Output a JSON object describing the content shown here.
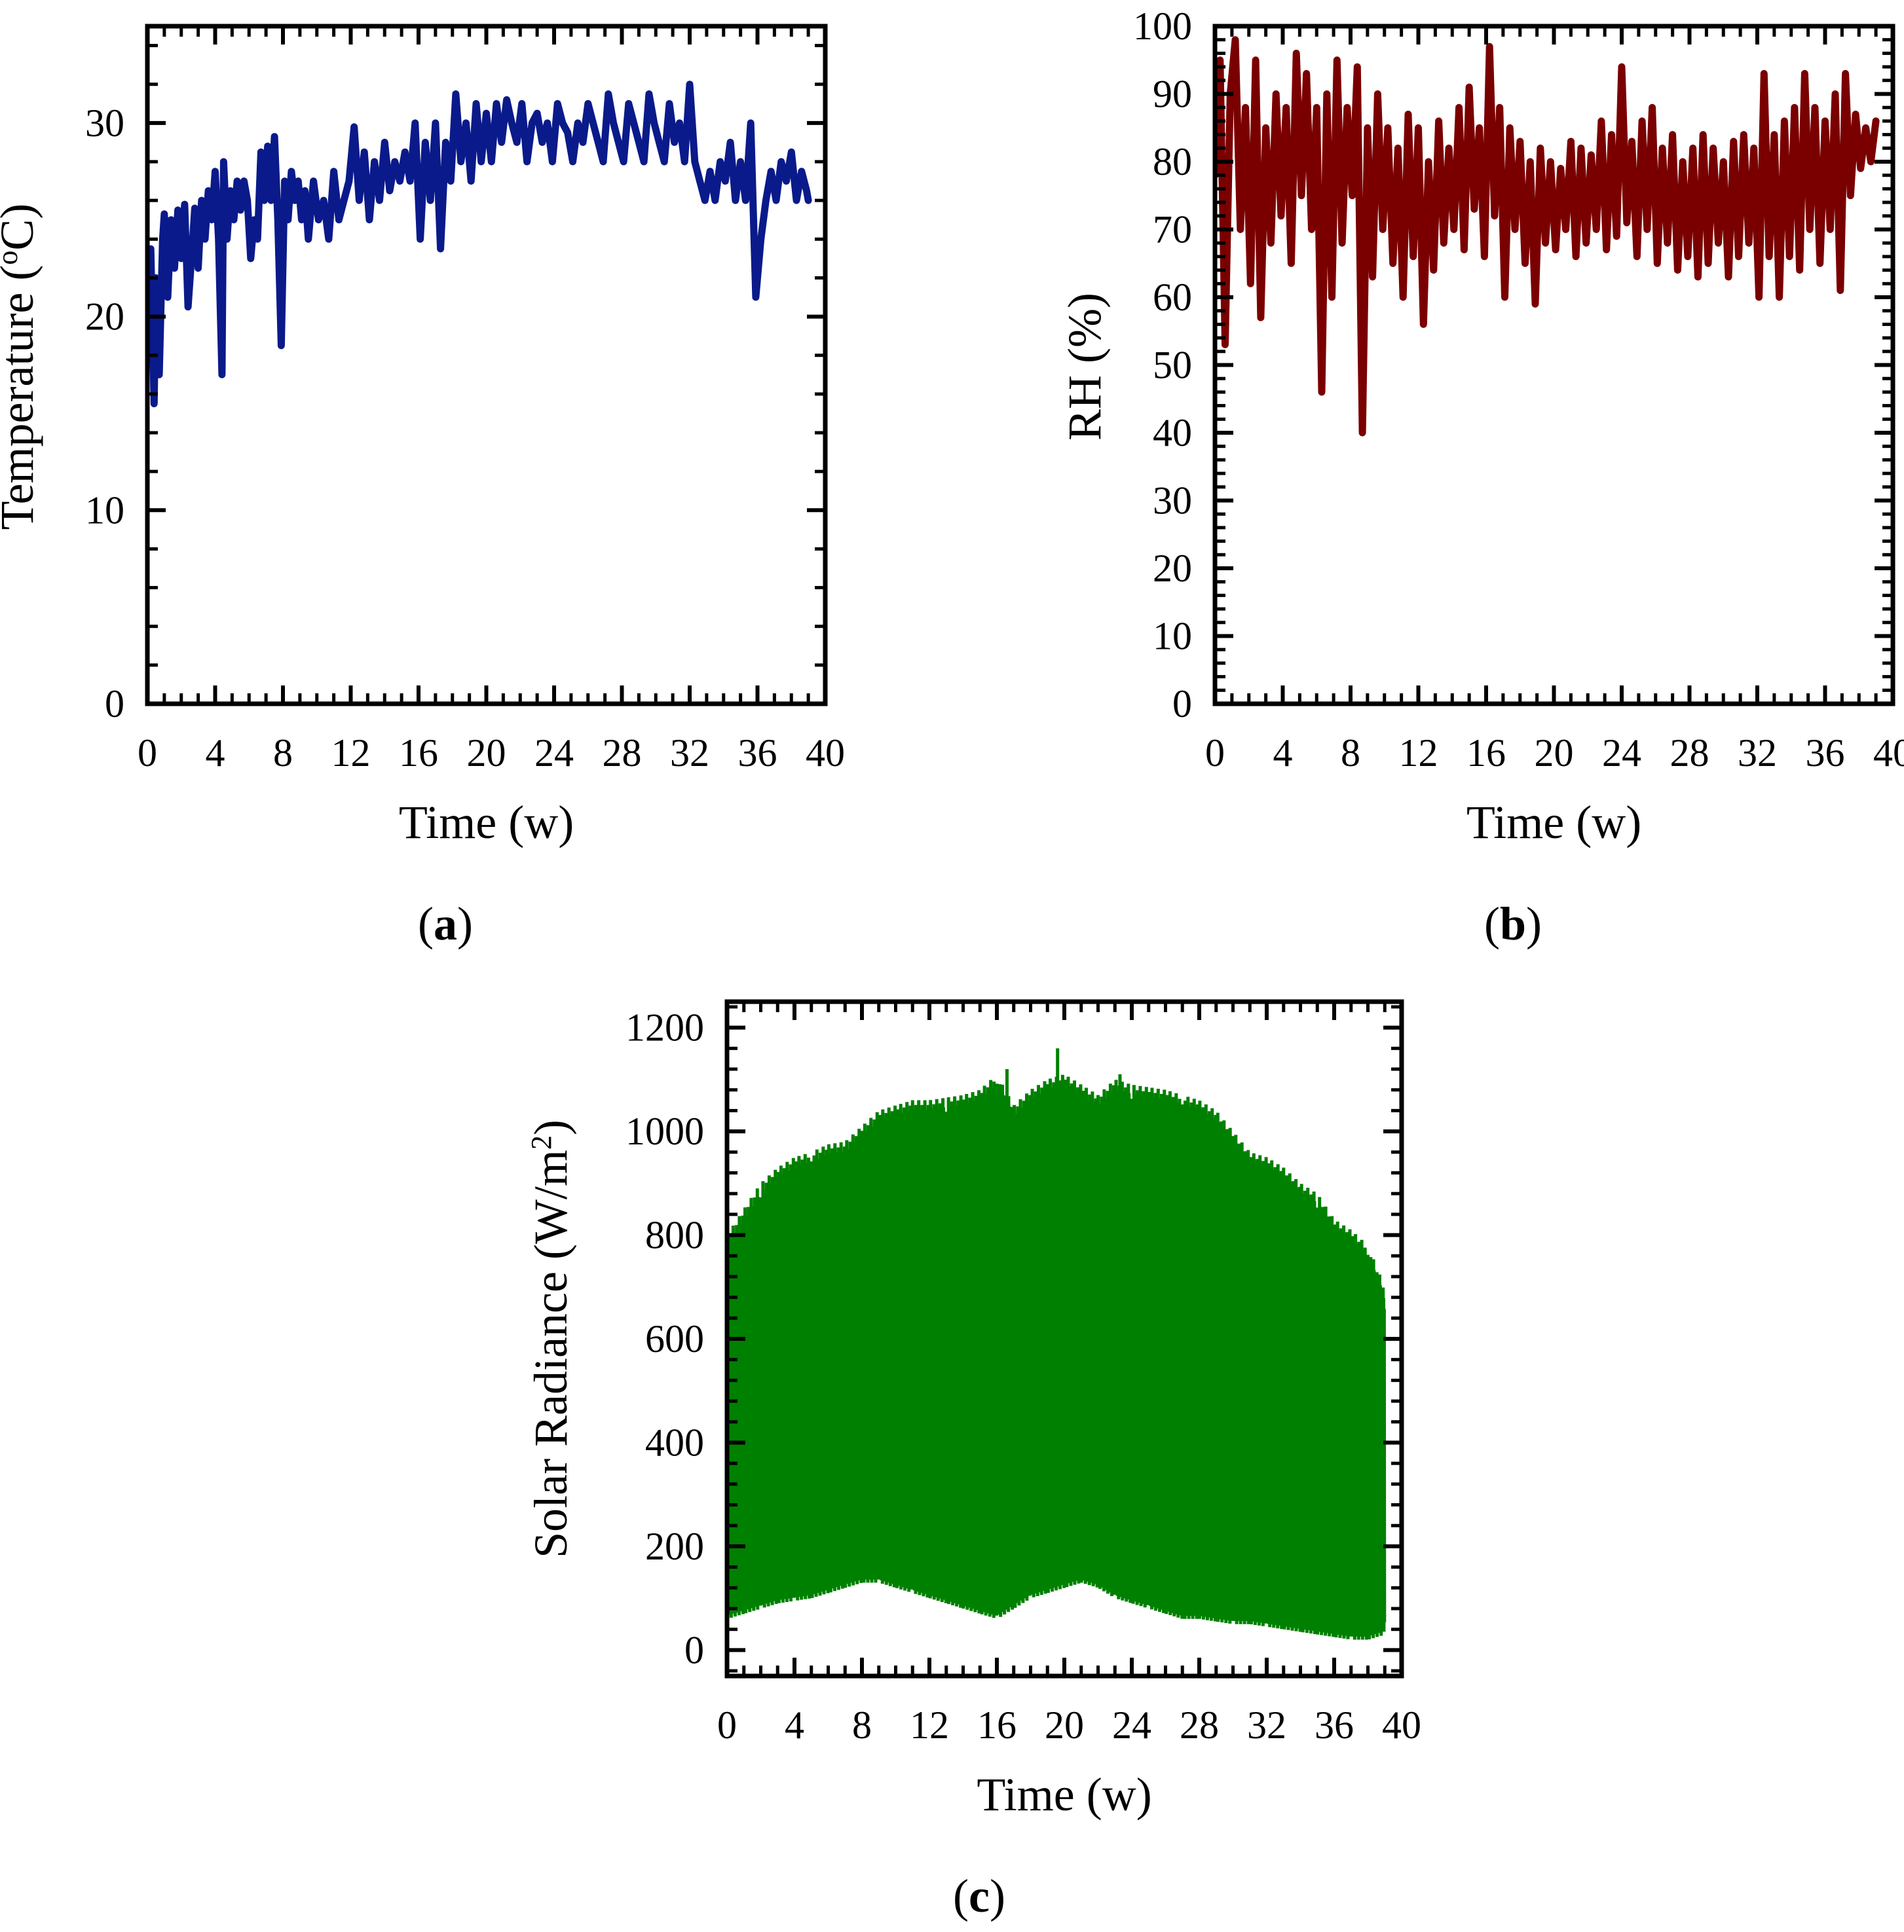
{
  "chart_data": [
    {
      "id": "a",
      "type": "line",
      "panel_label": "a",
      "xlabel": "Time (w)",
      "ylabel": "Temperature  (°C)",
      "ylabel_parts": {
        "prefix": "Temperature  (",
        "sup": "o",
        "suffix": "C)"
      },
      "xlim": [
        0,
        40
      ],
      "ylim": [
        0,
        35
      ],
      "xticks": [
        0,
        4,
        8,
        12,
        16,
        20,
        24,
        28,
        32,
        36,
        40
      ],
      "yticks": [
        0,
        10,
        20,
        30
      ],
      "color": "#0a1a8a",
      "series": [
        {
          "name": "Temperature",
          "x": [
            0.0,
            0.2,
            0.4,
            0.5,
            0.7,
            0.9,
            1.0,
            1.2,
            1.4,
            1.6,
            1.8,
            2.0,
            2.2,
            2.4,
            2.6,
            2.8,
            3.0,
            3.2,
            3.4,
            3.6,
            3.8,
            4.0,
            4.2,
            4.4,
            4.5,
            4.7,
            4.9,
            5.1,
            5.3,
            5.5,
            5.7,
            5.9,
            6.1,
            6.3,
            6.5,
            6.7,
            6.9,
            7.1,
            7.3,
            7.5,
            7.7,
            7.9,
            8.1,
            8.3,
            8.5,
            8.7,
            8.9,
            9.1,
            9.3,
            9.5,
            9.8,
            10.1,
            10.4,
            10.7,
            11.0,
            11.3,
            11.6,
            11.9,
            12.2,
            12.5,
            12.8,
            13.1,
            13.4,
            13.7,
            14.0,
            14.3,
            14.6,
            14.9,
            15.2,
            15.5,
            15.8,
            16.1,
            16.4,
            16.7,
            17.0,
            17.3,
            17.6,
            17.9,
            18.2,
            18.5,
            18.8,
            19.1,
            19.4,
            19.7,
            20.0,
            20.3,
            20.6,
            20.9,
            21.2,
            21.5,
            21.8,
            22.1,
            22.4,
            22.7,
            23.0,
            23.3,
            23.6,
            23.9,
            24.2,
            24.5,
            24.8,
            25.1,
            25.4,
            25.7,
            26.0,
            26.3,
            26.6,
            26.9,
            27.2,
            27.5,
            27.8,
            28.1,
            28.4,
            28.7,
            29.0,
            29.3,
            29.6,
            29.9,
            30.2,
            30.5,
            30.8,
            31.1,
            31.4,
            31.7,
            32.0,
            32.3,
            32.6,
            32.9,
            33.2,
            33.5,
            33.8,
            34.1,
            34.4,
            34.7,
            35.0,
            35.3,
            35.6,
            35.9,
            36.2,
            36.5,
            36.8,
            37.1,
            37.4,
            37.7,
            38.0,
            38.3,
            38.6,
            38.9,
            39.0
          ],
          "y": [
            19.5,
            23.5,
            15.5,
            22,
            17,
            24,
            25.3,
            21,
            25,
            22.5,
            25.5,
            23,
            25.8,
            20.5,
            23,
            25.6,
            22.5,
            26,
            24,
            26.5,
            25,
            27.5,
            24,
            17,
            28,
            24,
            26.5,
            25,
            27,
            25.5,
            27,
            26,
            23,
            25,
            24,
            28.5,
            26,
            28.8,
            26,
            29.3,
            25,
            18.5,
            27,
            25,
            27.5,
            26,
            27,
            25,
            26.5,
            24,
            27,
            25,
            26,
            24,
            27.5,
            25,
            26,
            27,
            29.8,
            26,
            28.5,
            25,
            28,
            26,
            29,
            26.5,
            28,
            27,
            28.5,
            27,
            30,
            24,
            29,
            26,
            30,
            23.5,
            29,
            27,
            31.5,
            28,
            30,
            27,
            31,
            28,
            30.5,
            28,
            31,
            29,
            31.2,
            30,
            29,
            31,
            28,
            30,
            30.5,
            29,
            30,
            28,
            31,
            30,
            29.5,
            28,
            30,
            29,
            31,
            30,
            29,
            28,
            31.5,
            30,
            29,
            28,
            31,
            30,
            29,
            28,
            31.5,
            30,
            29,
            28,
            31,
            29,
            30,
            28,
            32,
            28,
            27,
            26,
            27.5,
            26,
            28,
            27,
            29,
            26,
            28,
            26,
            30,
            21,
            24,
            26,
            27.5,
            26,
            28,
            27,
            28.5,
            26,
            27.5,
            26.5,
            26
          ]
        }
      ]
    },
    {
      "id": "b",
      "type": "line",
      "panel_label": "b",
      "xlabel": "Time (w)",
      "ylabel": "RH  (%)",
      "xlim": [
        0,
        40
      ],
      "ylim": [
        0,
        100
      ],
      "xticks": [
        0,
        4,
        8,
        12,
        16,
        20,
        24,
        28,
        32,
        36,
        40
      ],
      "yticks": [
        0,
        10,
        20,
        30,
        40,
        50,
        60,
        70,
        80,
        90,
        100
      ],
      "color": "#7a0000",
      "series": [
        {
          "name": "RH",
          "x": [
            0.0,
            0.3,
            0.6,
            0.9,
            1.2,
            1.5,
            1.8,
            2.1,
            2.4,
            2.7,
            3.0,
            3.3,
            3.6,
            3.9,
            4.2,
            4.5,
            4.8,
            5.1,
            5.4,
            5.7,
            6.0,
            6.3,
            6.6,
            6.9,
            7.2,
            7.5,
            7.8,
            8.1,
            8.4,
            8.7,
            9.0,
            9.3,
            9.6,
            9.9,
            10.2,
            10.5,
            10.8,
            11.1,
            11.4,
            11.7,
            12.0,
            12.3,
            12.6,
            12.9,
            13.2,
            13.5,
            13.8,
            14.1,
            14.4,
            14.7,
            15.0,
            15.3,
            15.6,
            15.9,
            16.2,
            16.5,
            16.8,
            17.1,
            17.4,
            17.7,
            18.0,
            18.3,
            18.6,
            18.9,
            19.2,
            19.5,
            19.8,
            20.1,
            20.4,
            20.7,
            21.0,
            21.3,
            21.6,
            21.9,
            22.2,
            22.5,
            22.8,
            23.1,
            23.4,
            23.7,
            24.0,
            24.3,
            24.6,
            24.9,
            25.2,
            25.5,
            25.8,
            26.1,
            26.4,
            26.7,
            27.0,
            27.3,
            27.6,
            27.9,
            28.2,
            28.5,
            28.8,
            29.1,
            29.4,
            29.7,
            30.0,
            30.3,
            30.6,
            30.9,
            31.2,
            31.5,
            31.8,
            32.1,
            32.4,
            32.7,
            33.0,
            33.3,
            33.6,
            33.9,
            34.2,
            34.5,
            34.8,
            35.1,
            35.4,
            35.7,
            36.0,
            36.3,
            36.6,
            36.9,
            37.2,
            37.5,
            37.8,
            38.1,
            38.4,
            38.7,
            39.0
          ],
          "y": [
            78,
            95,
            53,
            90,
            98,
            70,
            88,
            62,
            95,
            57,
            85,
            68,
            90,
            72,
            88,
            65,
            96,
            75,
            93,
            70,
            88,
            46,
            90,
            60,
            95,
            68,
            88,
            75,
            94,
            40,
            85,
            63,
            90,
            70,
            85,
            65,
            82,
            60,
            87,
            66,
            85,
            56,
            80,
            64,
            86,
            68,
            82,
            70,
            88,
            67,
            91,
            73,
            85,
            66,
            97,
            72,
            88,
            60,
            85,
            70,
            83,
            65,
            80,
            59,
            82,
            68,
            80,
            67,
            79,
            70,
            83,
            66,
            82,
            68,
            81,
            70,
            86,
            67,
            84,
            69,
            94,
            71,
            83,
            66,
            86,
            70,
            88,
            65,
            82,
            68,
            84,
            64,
            80,
            66,
            82,
            63,
            84,
            65,
            82,
            68,
            80,
            63,
            83,
            66,
            84,
            68,
            82,
            60,
            93,
            66,
            84,
            60,
            86,
            66,
            88,
            64,
            93,
            70,
            88,
            65,
            86,
            70,
            90,
            61,
            93,
            75,
            87,
            79,
            85,
            80,
            86
          ]
        }
      ]
    },
    {
      "id": "c",
      "type": "line",
      "panel_label": "c",
      "xlabel": "Time (w)",
      "ylabel": "Solar Radiance  (W/m²)",
      "ylabel_parts": {
        "prefix": "Solar Radiance  (W/m",
        "sup": "2",
        "suffix": ")"
      },
      "xlim": [
        0,
        40
      ],
      "ylim": [
        -50,
        1250
      ],
      "xticks": [
        0,
        4,
        8,
        12,
        16,
        20,
        24,
        28,
        32,
        36,
        40
      ],
      "yticks": [
        0,
        200,
        400,
        600,
        800,
        1000,
        1200
      ],
      "color": "#008000",
      "envelope": {
        "x": [
          0,
          1,
          2,
          3,
          4,
          5,
          6,
          7,
          8,
          9,
          10,
          11,
          12,
          13,
          14,
          15,
          16,
          17,
          18,
          19,
          20,
          21,
          22,
          23,
          24,
          25,
          26,
          27,
          28,
          29,
          30,
          31,
          32,
          33,
          34,
          35,
          36,
          37,
          38,
          39
        ],
        "upper": [
          800,
          850,
          900,
          930,
          950,
          960,
          975,
          980,
          1010,
          1040,
          1050,
          1060,
          1060,
          1065,
          1070,
          1080,
          1110,
          1050,
          1080,
          1100,
          1110,
          1090,
          1070,
          1100,
          1090,
          1085,
          1080,
          1070,
          1060,
          1040,
          1000,
          960,
          950,
          930,
          900,
          880,
          830,
          810,
          780,
          700
        ],
        "lower": [
          60,
          70,
          80,
          90,
          95,
          100,
          110,
          120,
          130,
          130,
          120,
          110,
          100,
          90,
          80,
          70,
          60,
          80,
          100,
          110,
          120,
          130,
          120,
          100,
          90,
          80,
          70,
          60,
          60,
          55,
          50,
          50,
          45,
          40,
          35,
          30,
          25,
          20,
          20,
          30
        ]
      },
      "peaks": [
        {
          "x": 16.6,
          "y": 1120
        },
        {
          "x": 19.6,
          "y": 1160
        },
        {
          "x": 23.3,
          "y": 1110
        }
      ]
    }
  ]
}
